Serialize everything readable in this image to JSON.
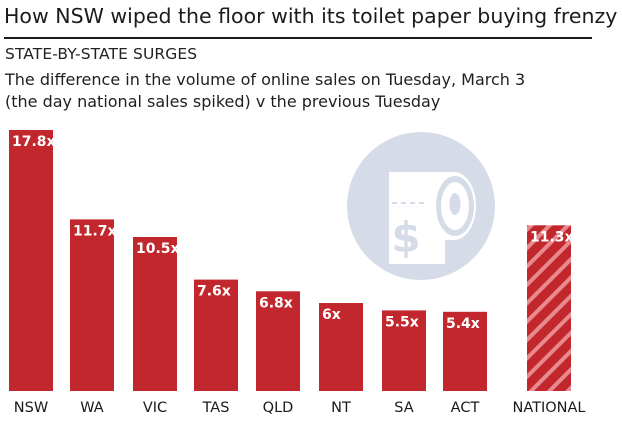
{
  "header": {
    "title": "How NSW wiped the floor with its toilet paper buying frenzy",
    "kicker": "STATE-BY-STATE SURGES",
    "subtitle_line1": "The difference in the volume of online sales on Tuesday, March 3",
    "subtitle_line2": "(the day national sales spiked) v the previous Tuesday"
  },
  "chart_data": {
    "type": "bar",
    "title": "How NSW wiped the floor with its toilet paper buying frenzy",
    "subtitle": "The difference in the volume of online sales on Tuesday, March 3 (the day national sales spiked) v the previous Tuesday",
    "categories": [
      "NSW",
      "WA",
      "VIC",
      "TAS",
      "QLD",
      "NT",
      "SA",
      "ACT",
      "NATIONAL"
    ],
    "values": [
      17.8,
      11.7,
      10.5,
      7.6,
      6.8,
      6.0,
      5.5,
      5.4,
      11.3
    ],
    "labels": [
      "17.8x",
      "11.7x",
      "10.5x",
      "7.6x",
      "6.8x",
      "6x",
      "5.5x",
      "5.4x",
      "11.3x"
    ],
    "hatched": [
      false,
      false,
      false,
      false,
      false,
      false,
      false,
      false,
      true
    ],
    "xlabel": "",
    "ylabel": "",
    "ylim": [
      0,
      17.8
    ],
    "grid": false,
    "legend": "none",
    "colors": {
      "bar": "#c1272d",
      "hatch": "#e7898d",
      "label_text": "#ffffff",
      "axis_text": "#1a1a1a",
      "watermark_circle": "#d5dbe7",
      "watermark_fg": "#ffffff"
    },
    "watermark_icon": "toilet-paper-dollar-icon"
  }
}
